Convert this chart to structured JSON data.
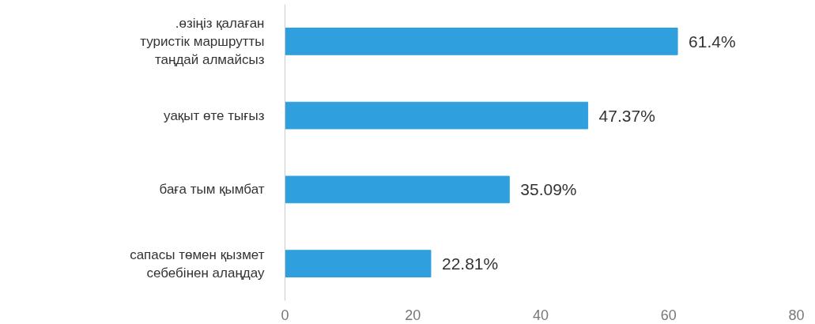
{
  "chart_data": {
    "type": "bar",
    "orientation": "horizontal",
    "categories": [
      ".өзіңіз қалаған туристік маршрутты таңдай алмайсыз",
      "уақыт өте тығыз",
      "баға тым қымбат",
      "сапасы төмен қызмет себебінен алаңдау"
    ],
    "values": [
      61.4,
      47.37,
      35.09,
      22.81
    ],
    "value_labels": [
      "61.4%",
      "47.37%",
      "35.09%",
      "22.81%"
    ],
    "color": "#2fa0dd",
    "xlim": [
      0,
      80
    ],
    "xticks": [
      0,
      20,
      40,
      60,
      80
    ],
    "grid": false
  }
}
